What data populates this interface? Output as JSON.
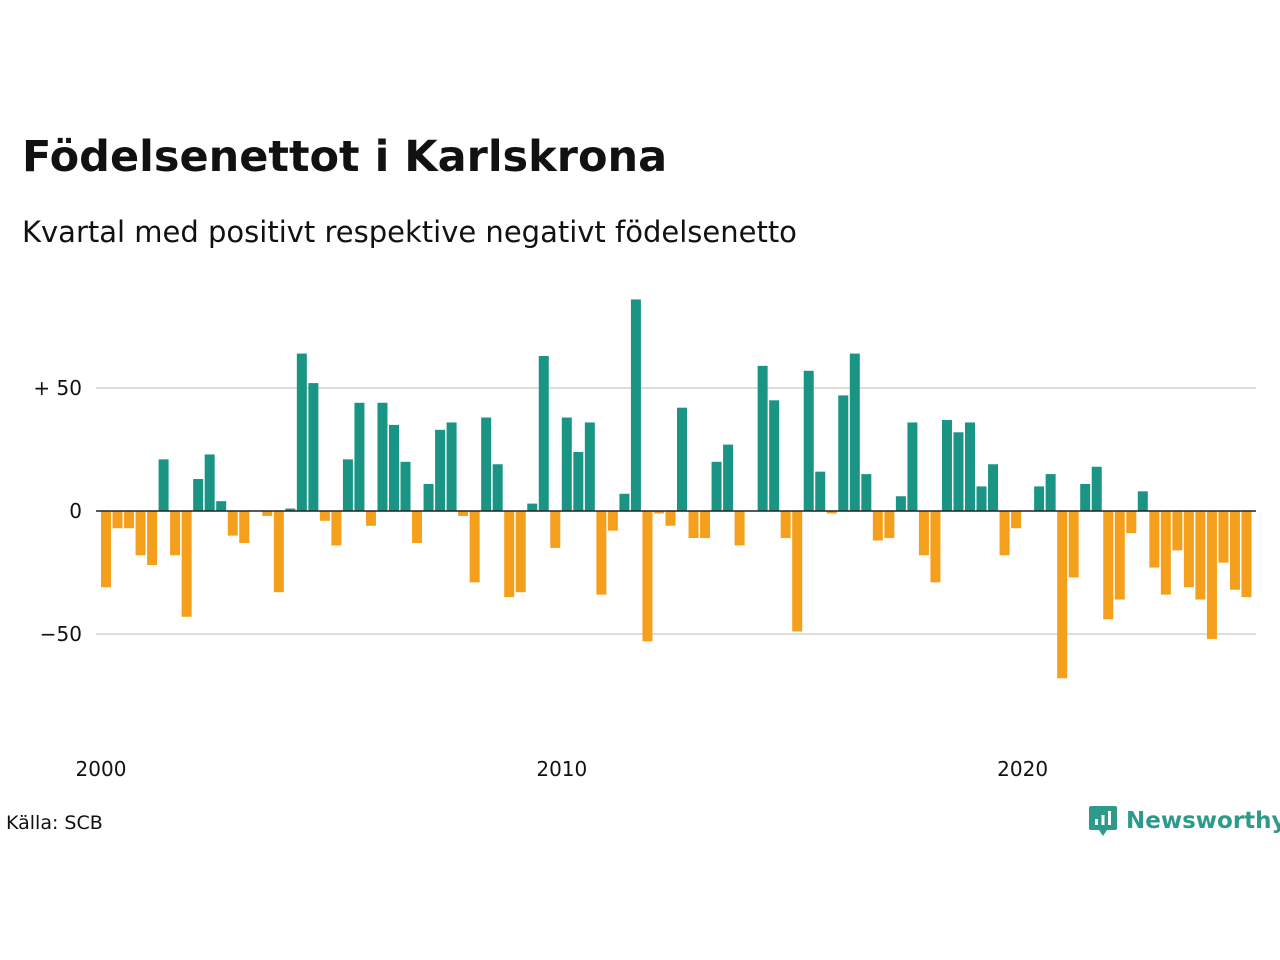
{
  "title": "Födelsenettot i Karlskrona",
  "subtitle": "Kvartal med positivt respektive negativt födelsenetto",
  "source": "Källa: SCB",
  "brand": {
    "name": "Newsworthy",
    "icon": "newsworthy-logo-icon"
  },
  "colors": {
    "positive": "#1a9585",
    "negative": "#f5a01c",
    "grid": "#dddddd",
    "zero": "#222222"
  },
  "chart_data": {
    "type": "bar",
    "xlabel": "",
    "ylabel": "",
    "ylim": [
      -80,
      90
    ],
    "yticks": [
      {
        "value": 50,
        "label": "+ 50"
      },
      {
        "value": 0,
        "label": "0"
      },
      {
        "value": -50,
        "label": "−50"
      }
    ],
    "xticks": [
      {
        "value": 2000,
        "label": "2000"
      },
      {
        "value": 2010,
        "label": "2010"
      },
      {
        "value": 2020,
        "label": "2020"
      }
    ],
    "x_start_year": 2000,
    "grid": true,
    "legend": "none",
    "values": [
      -31,
      -7,
      -7,
      -18,
      -22,
      21,
      -18,
      -43,
      13,
      23,
      4,
      -10,
      -13,
      0,
      -2,
      -33,
      1,
      64,
      52,
      -4,
      -14,
      21,
      44,
      -6,
      44,
      35,
      20,
      -13,
      11,
      33,
      36,
      -2,
      -29,
      38,
      19,
      -35,
      -33,
      3,
      63,
      -15,
      38,
      24,
      36,
      -34,
      -8,
      7,
      86,
      -53,
      -1,
      -6,
      42,
      -11,
      -11,
      20,
      27,
      -14,
      0,
      59,
      45,
      -11,
      -49,
      57,
      16,
      -1,
      47,
      64,
      15,
      -12,
      -11,
      6,
      36,
      -18,
      -29,
      37,
      32,
      36,
      10,
      19,
      -18,
      -7,
      0,
      10,
      15,
      -68,
      -27,
      11,
      18,
      -44,
      -36,
      -9,
      8,
      -23,
      -34,
      -16,
      -31,
      -36,
      -52,
      -21,
      -32,
      -35
    ]
  }
}
